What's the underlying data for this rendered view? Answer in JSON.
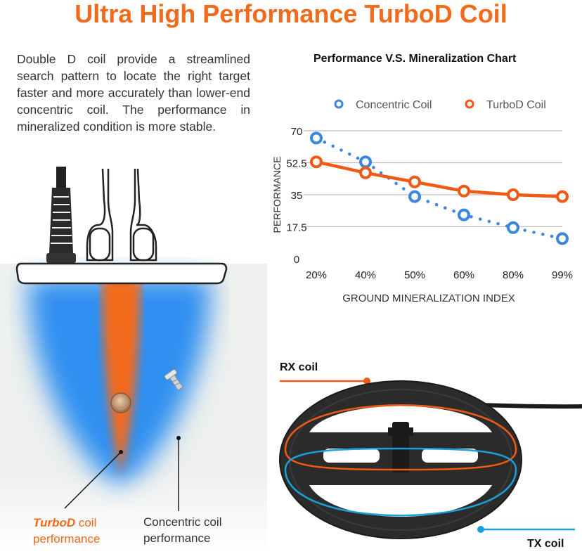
{
  "title": "Ultra High Performance TurboD Coil",
  "intro": "Double D coil provide a streamlined search pattern to locate the right target faster and more accurately than lower-end concentric coil. The performance in mineralized condition is more stable.",
  "chart_data": {
    "type": "line",
    "title": "Performance V.S. Mineralization Chart",
    "xlabel": "GROUND MINERALIZATION INDEX",
    "ylabel": "PERFORMANCE",
    "categories": [
      "20%",
      "40%",
      "50%",
      "60%",
      "80%",
      "99%"
    ],
    "yticks": [
      "0",
      "17.5",
      "35",
      "52.5",
      "70"
    ],
    "ylim": [
      0,
      70
    ],
    "grid": true,
    "legend_position": "top",
    "series": [
      {
        "name": "Concentric Coil",
        "values": [
          66,
          53,
          34,
          24,
          17,
          11
        ],
        "color": "#3a86e0",
        "style": "dotted"
      },
      {
        "name": "TurboD Coil",
        "values": [
          53,
          47,
          42,
          37,
          35,
          34
        ],
        "color": "#f05a14",
        "style": "solid"
      }
    ]
  },
  "labels": {
    "rx_coil": "RX coil",
    "tx_coil": "TX coil",
    "turbod_word": "TurboD",
    "turbod_rest": " coil",
    "turbod_line2": "performance",
    "concentric_line1": "Concentric coil",
    "concentric_line2": "performance"
  },
  "colors": {
    "orange": "#f26a1b",
    "blue": "#2d8ff0",
    "rx_line": "#f05a14",
    "tx_line": "#1aa0d8"
  }
}
